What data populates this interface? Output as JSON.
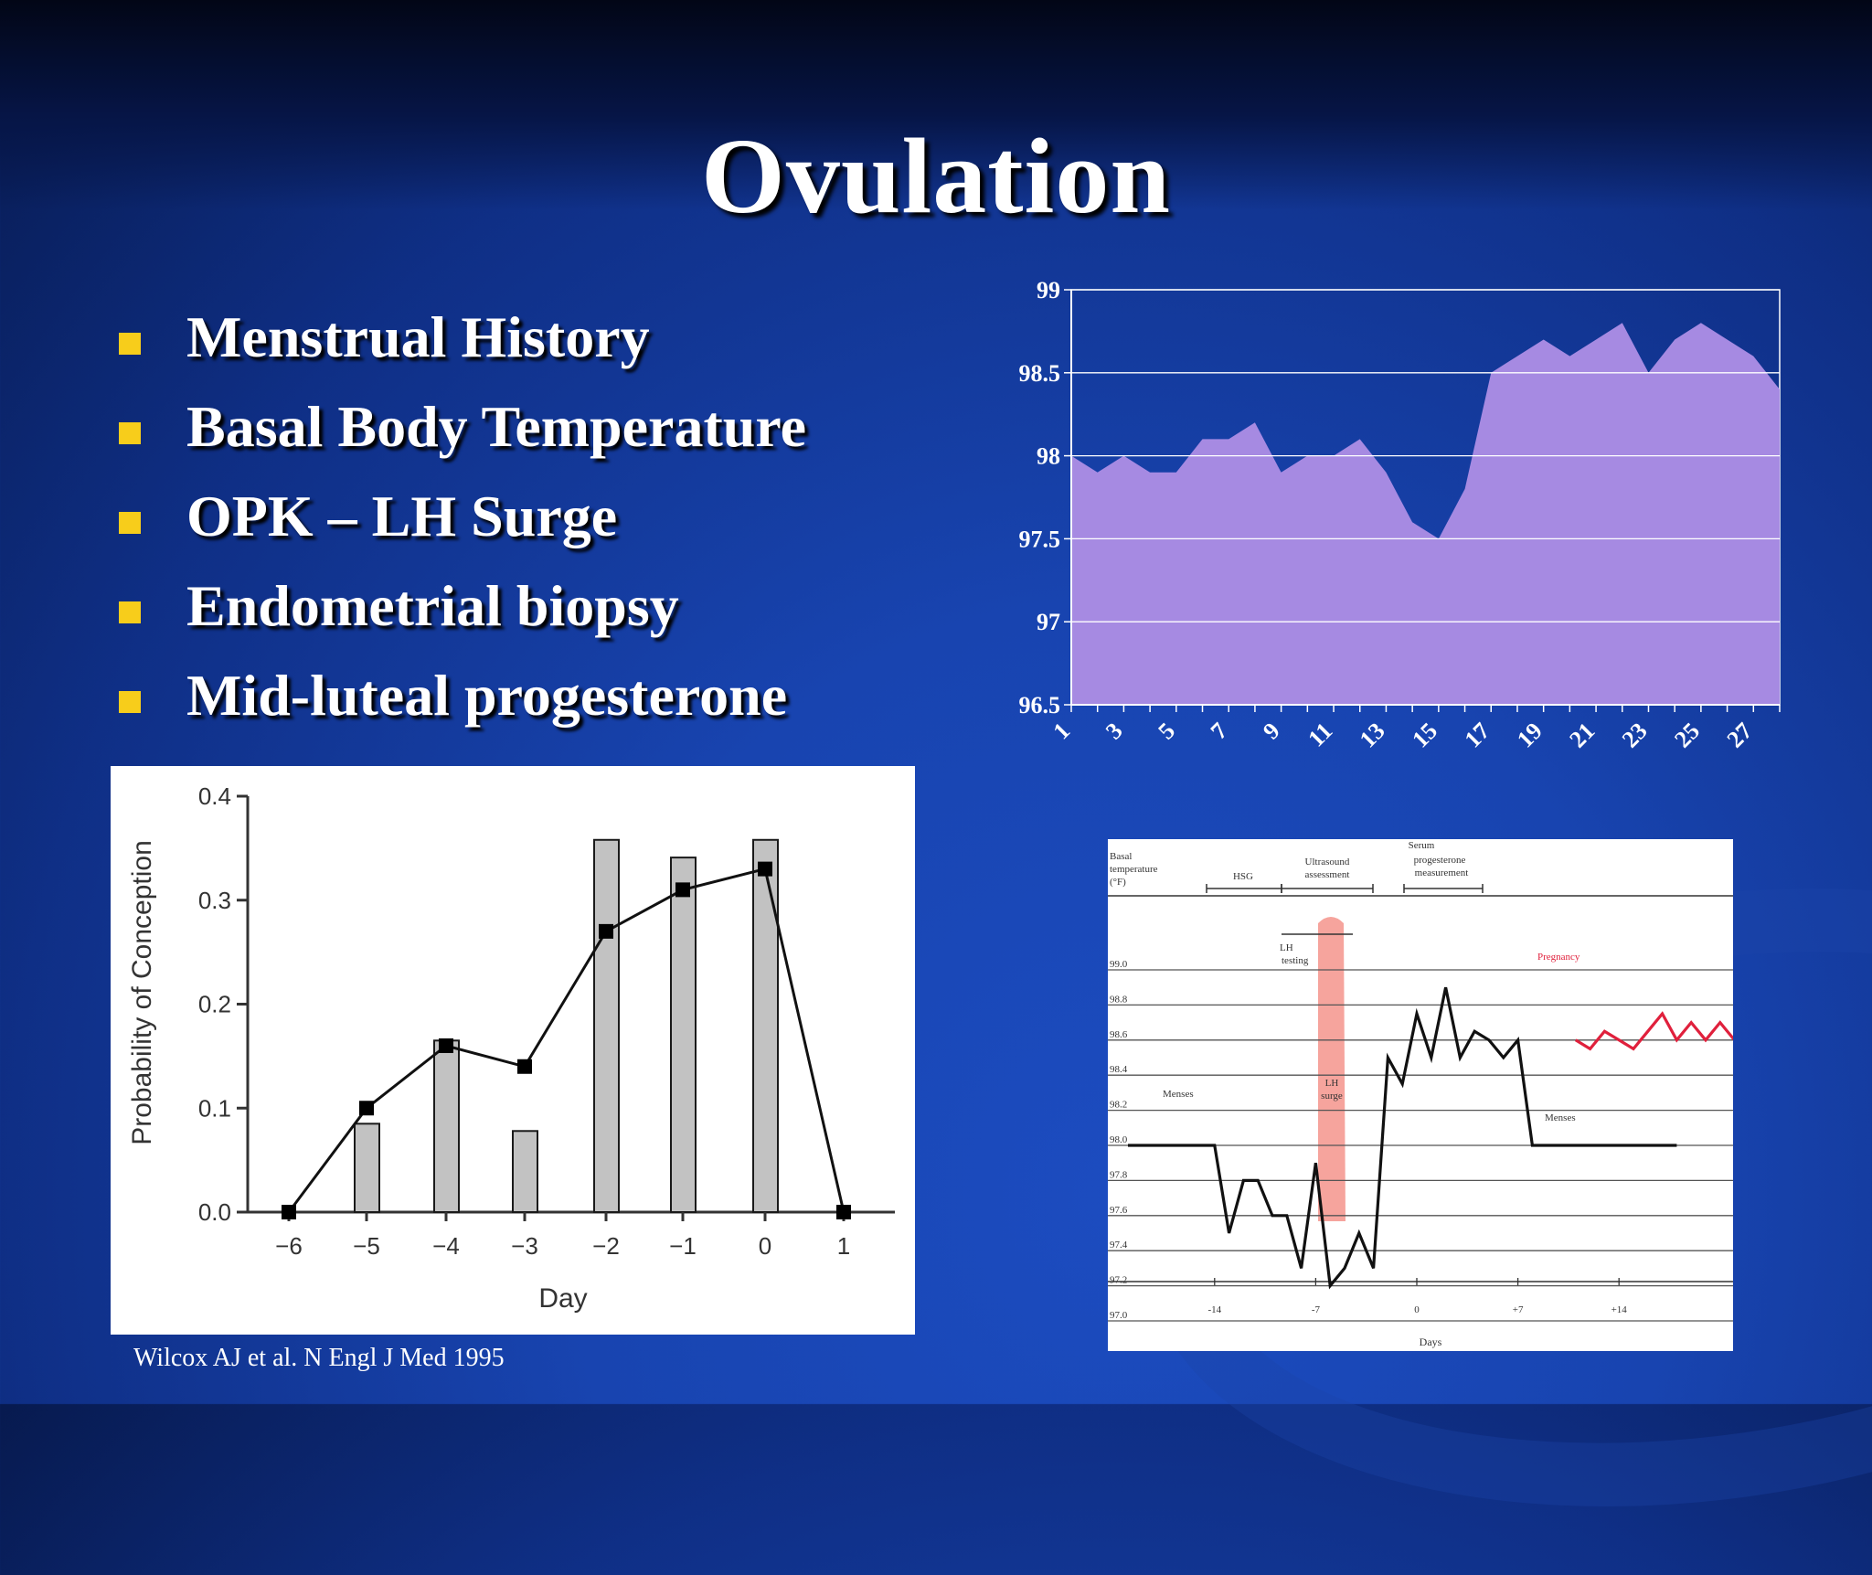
{
  "slide": {
    "title": "Ovulation",
    "bullets": [
      "Menstrual History",
      "Basal Body Temperature",
      "OPK – LH Surge",
      "Endometrial biopsy",
      "Mid-luteal progesterone"
    ],
    "citation": "Wilcox AJ et al. N Engl J Med 1995"
  },
  "colors": {
    "background": "#1846b4",
    "bullet": "#f7cd1b",
    "area_fill": "#a68ae2",
    "lh_surge": "#f4948c",
    "pregnancy": "#e0203c"
  },
  "chart_data": [
    {
      "type": "area",
      "x_ticks": [
        "1",
        "3",
        "5",
        "7",
        "9",
        "11",
        "13",
        "15",
        "17",
        "19",
        "21",
        "23",
        "25",
        "27"
      ],
      "x": [
        1,
        2,
        3,
        4,
        5,
        6,
        7,
        8,
        9,
        10,
        11,
        12,
        13,
        14,
        15,
        16,
        17,
        18,
        19,
        20,
        21,
        22,
        23,
        24,
        25,
        26,
        27,
        28
      ],
      "values": [
        98.0,
        97.9,
        98.0,
        97.9,
        97.9,
        98.1,
        98.1,
        98.2,
        97.9,
        98.0,
        98.0,
        98.1,
        97.9,
        97.6,
        97.5,
        97.8,
        98.5,
        98.6,
        98.7,
        98.6,
        98.7,
        98.8,
        98.5,
        98.7,
        98.8,
        98.7,
        98.6,
        98.4
      ],
      "ylim": [
        96.5,
        99
      ],
      "y_ticks": [
        "96.5",
        "97",
        "97.5",
        "98",
        "98.5",
        "99"
      ],
      "grid": true
    },
    {
      "type": "bar+line",
      "categories": [
        "−6",
        "−5",
        "−4",
        "−3",
        "−2",
        "−1",
        "0",
        "1"
      ],
      "bar_values": [
        0,
        0.085,
        0.165,
        0.078,
        0.358,
        0.341,
        0.358,
        0
      ],
      "line_values": [
        0,
        0.1,
        0.16,
        0.14,
        0.27,
        0.31,
        0.33,
        0
      ],
      "ylim": [
        0,
        0.4
      ],
      "y_ticks": [
        "0.0",
        "0.1",
        "0.2",
        "0.3",
        "0.4"
      ],
      "xlabel": "Day",
      "ylabel": "Probability of Conception"
    },
    {
      "type": "line",
      "header_labels": [
        "Basal temperature (°F)",
        "HSG",
        "Ultrasound assessment",
        "Serum progesterone measurement"
      ],
      "y_ticks": [
        "99.0",
        "98.8",
        "98.6",
        "98.4",
        "98.2",
        "98.0",
        "97.8",
        "97.6",
        "97.4",
        "97.2",
        "97.0"
      ],
      "x_ticks": [
        "-14",
        "-7",
        "0",
        "+7",
        "+14"
      ],
      "xlabel": "Days",
      "ylim": [
        97.0,
        99.0
      ],
      "annotations": {
        "menses_start": "Menses",
        "lh_testing": "LH testing",
        "lh_surge": "LH surge",
        "pregnancy": "Pregnancy",
        "menses_end": "Menses"
      },
      "series": [
        {
          "name": "Menses",
          "x": [
            -20,
            -16,
            -15,
            -14,
            -13,
            -12,
            -11,
            -10,
            -9,
            -8,
            -7,
            -6,
            -5,
            -4,
            -3,
            -2,
            -1,
            0,
            1,
            2,
            3,
            4,
            5,
            6,
            7,
            8,
            9,
            10,
            11,
            12,
            13,
            14,
            15,
            16,
            17,
            18
          ],
          "y": [
            98.0,
            98.0,
            98.0,
            98.0,
            97.5,
            97.8,
            97.8,
            97.6,
            97.6,
            97.3,
            97.9,
            97.2,
            97.3,
            97.5,
            97.3,
            98.5,
            98.35,
            98.75,
            98.5,
            98.9,
            98.5,
            98.65,
            98.6,
            98.5,
            98.6,
            98.0,
            98.0,
            98.0,
            98.0,
            98.0,
            98.0,
            98.0,
            98.0,
            98.0,
            98.0,
            98.0
          ]
        },
        {
          "name": "Pregnancy",
          "x": [
            11,
            12,
            13,
            14,
            15,
            16,
            17,
            18,
            19,
            20,
            21,
            22,
            23,
            24
          ],
          "y": [
            98.6,
            98.55,
            98.65,
            98.6,
            98.55,
            98.65,
            98.75,
            98.6,
            98.7,
            98.6,
            98.7,
            98.6,
            98.75,
            98.6
          ]
        }
      ]
    }
  ]
}
